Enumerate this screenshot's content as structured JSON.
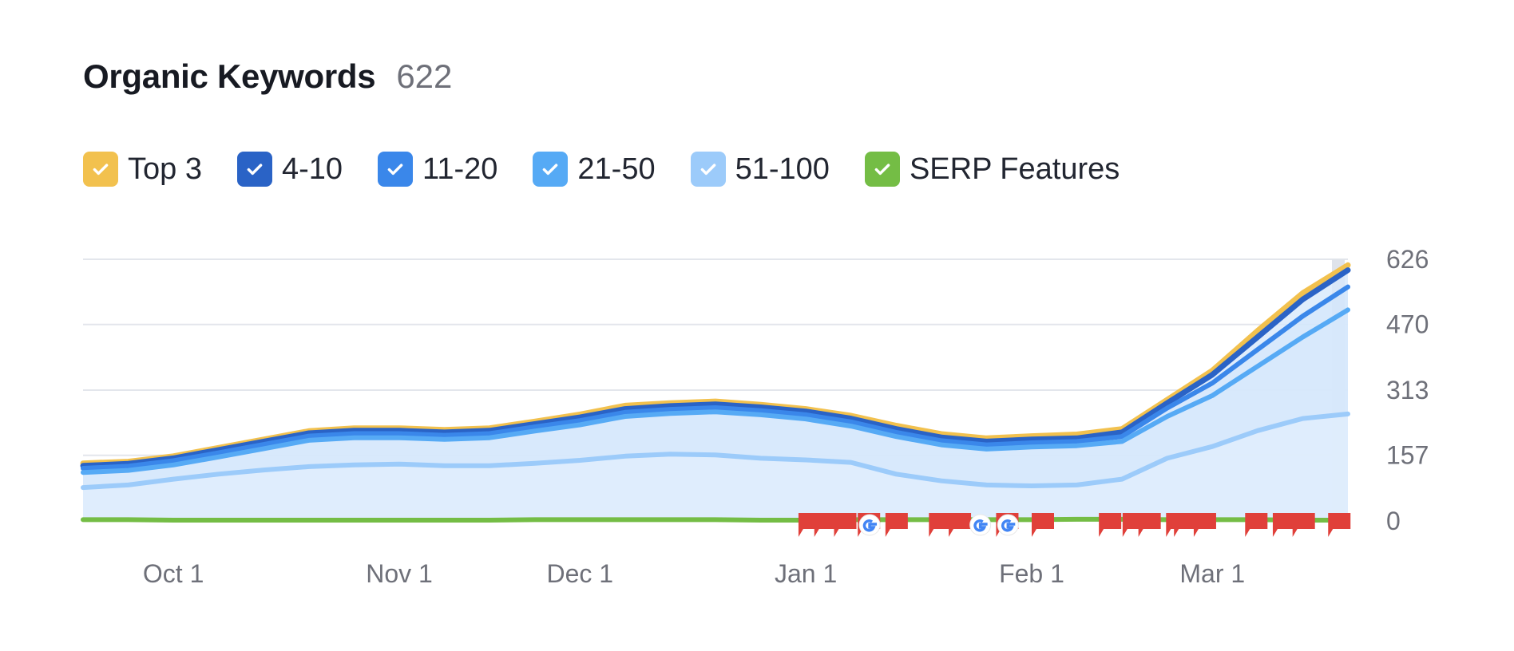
{
  "widget": {
    "title": "Organic Keywords",
    "count": "622"
  },
  "legend": [
    {
      "label": "Top 3",
      "color": "#f2c14e",
      "checked": true,
      "icon": "check-icon"
    },
    {
      "label": "4-10",
      "color": "#2a63c6",
      "checked": true,
      "icon": "check-icon"
    },
    {
      "label": "11-20",
      "color": "#3a87ea",
      "checked": true,
      "icon": "check-icon"
    },
    {
      "label": "21-50",
      "color": "#56aaf5",
      "checked": true,
      "icon": "check-icon"
    },
    {
      "label": "51-100",
      "color": "#9ccbfa",
      "checked": true,
      "icon": "check-icon"
    },
    {
      "label": "SERP Features",
      "color": "#74bd45",
      "checked": true,
      "icon": "check-icon"
    }
  ],
  "chart_data": {
    "type": "area",
    "x_labels": [
      "Oct 1",
      "Nov 1",
      "Dec 1",
      "Jan 1",
      "Feb 1",
      "Mar 1"
    ],
    "x_label_dates": [
      "Oct 1",
      "Nov 1",
      "Dec 1",
      "Jan 1",
      "Feb 1",
      "Mar 1"
    ],
    "y_ticks": [
      0,
      157,
      313,
      470,
      626
    ],
    "ylim": [
      0,
      626
    ],
    "x": [
      "Sep 19",
      "Sep 26",
      "Oct 1",
      "Oct 8",
      "Oct 15",
      "Oct 22",
      "Oct 29",
      "Nov 1",
      "Nov 8",
      "Nov 15",
      "Nov 22",
      "Dec 1",
      "Dec 8",
      "Dec 15",
      "Dec 22",
      "Dec 29",
      "Jan 1",
      "Jan 8",
      "Jan 15",
      "Jan 22",
      "Jan 29",
      "Feb 1",
      "Feb 8",
      "Feb 15",
      "Feb 22",
      "Mar 1",
      "Mar 8",
      "Mar 15",
      "Mar 19"
    ],
    "series": [
      {
        "name": "Top 3",
        "color": "#f2c14e",
        "values": [
          138,
          142,
          155,
          175,
          195,
          215,
          222,
          222,
          218,
          222,
          238,
          255,
          276,
          282,
          286,
          278,
          268,
          252,
          228,
          208,
          198,
          203,
          207,
          220,
          290,
          360,
          455,
          545,
          612
        ]
      },
      {
        "name": "4-10",
        "color": "#2a63c6",
        "values": [
          132,
          137,
          150,
          170,
          190,
          210,
          216,
          216,
          212,
          216,
          232,
          248,
          268,
          275,
          279,
          272,
          262,
          245,
          220,
          200,
          190,
          195,
          198,
          212,
          282,
          350,
          440,
          530,
          600
        ]
      },
      {
        "name": "11-20",
        "color": "#3a87ea",
        "values": [
          126,
          131,
          144,
          163,
          183,
          203,
          209,
          209,
          205,
          209,
          225,
          240,
          260,
          267,
          271,
          264,
          254,
          237,
          212,
          192,
          182,
          187,
          190,
          202,
          270,
          330,
          410,
          490,
          560
        ]
      },
      {
        "name": "21-50",
        "color": "#56aaf5",
        "values": [
          116,
          121,
          134,
          153,
          173,
          193,
          199,
          199,
          195,
          199,
          215,
          230,
          250,
          257,
          261,
          254,
          244,
          227,
          202,
          182,
          172,
          177,
          180,
          190,
          250,
          300,
          370,
          440,
          505
        ]
      },
      {
        "name": "51-100",
        "color": "#9ccbfa",
        "values": [
          80,
          86,
          100,
          112,
          122,
          130,
          134,
          136,
          132,
          132,
          138,
          145,
          155,
          160,
          158,
          150,
          146,
          140,
          112,
          96,
          86,
          84,
          86,
          100,
          150,
          178,
          216,
          245,
          256
        ]
      },
      {
        "name": "SERP Features",
        "color": "#74bd45",
        "values": [
          3,
          3,
          2,
          2,
          2,
          2,
          2,
          2,
          2,
          2,
          3,
          3,
          3,
          3,
          3,
          2,
          2,
          3,
          3,
          3,
          3,
          3,
          4,
          4,
          3,
          3,
          3,
          2,
          2
        ]
      }
    ],
    "markers": {
      "note_flags": [
        18.1,
        18.5,
        19,
        19.6,
        20.3,
        21.4,
        21.9,
        23.1,
        24,
        25.7,
        26.3,
        26.7,
        27.4,
        27.6,
        28.1,
        29.4,
        30.1,
        30.6,
        31.5
      ],
      "google_icons": [
        19.9,
        22.7,
        23.4
      ]
    },
    "grid": true,
    "legend_position": "top-left"
  }
}
